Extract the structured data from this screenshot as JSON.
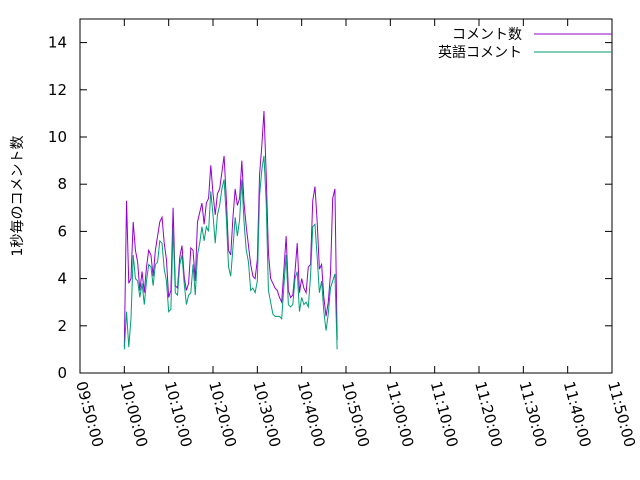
{
  "chart_data": {
    "type": "line",
    "ylabel": "1秒毎のコメント数",
    "xlabel": "",
    "ylim": [
      0,
      15
    ],
    "x_ticks": [
      "09:50:00",
      "10:00:00",
      "10:10:00",
      "10:20:00",
      "10:30:00",
      "10:40:00",
      "10:50:00",
      "11:00:00",
      "11:10:00",
      "11:20:00",
      "11:30:00",
      "11:40:00",
      "11:50:00"
    ],
    "y_ticks": [
      0,
      2,
      4,
      6,
      8,
      10,
      12,
      14
    ],
    "legend_position": "top-right",
    "series": [
      {
        "name": "コメント数",
        "color": "#9400d3",
        "points": [
          [
            "10:00:00",
            1.1
          ],
          [
            "10:00:30",
            7.3
          ],
          [
            "10:01:00",
            3.8
          ],
          [
            "10:01:30",
            4.0
          ],
          [
            "10:02:00",
            6.4
          ],
          [
            "10:02:30",
            5.2
          ],
          [
            "10:03:00",
            4.7
          ],
          [
            "10:03:30",
            3.5
          ],
          [
            "10:04:00",
            4.3
          ],
          [
            "10:04:30",
            3.4
          ],
          [
            "10:05:00",
            4.5
          ],
          [
            "10:05:30",
            5.2
          ],
          [
            "10:06:00",
            5.0
          ],
          [
            "10:06:30",
            4.1
          ],
          [
            "10:07:00",
            5.2
          ],
          [
            "10:07:30",
            5.8
          ],
          [
            "10:08:00",
            6.4
          ],
          [
            "10:08:30",
            6.6
          ],
          [
            "10:09:00",
            5.5
          ],
          [
            "10:09:30",
            4.8
          ],
          [
            "10:10:00",
            3.2
          ],
          [
            "10:10:30",
            3.5
          ],
          [
            "10:11:00",
            7.0
          ],
          [
            "10:11:30",
            3.7
          ],
          [
            "10:12:00",
            3.6
          ],
          [
            "10:12:30",
            4.9
          ],
          [
            "10:13:00",
            5.4
          ],
          [
            "10:13:30",
            4.1
          ],
          [
            "10:14:00",
            3.5
          ],
          [
            "10:14:30",
            3.8
          ],
          [
            "10:15:00",
            5.3
          ],
          [
            "10:15:30",
            5.2
          ],
          [
            "10:16:00",
            3.9
          ],
          [
            "10:16:30",
            6.4
          ],
          [
            "10:17:00",
            6.8
          ],
          [
            "10:17:30",
            7.2
          ],
          [
            "10:18:00",
            6.3
          ],
          [
            "10:18:30",
            7.2
          ],
          [
            "10:19:00",
            7.4
          ],
          [
            "10:19:30",
            8.8
          ],
          [
            "10:20:00",
            7.6
          ],
          [
            "10:20:30",
            6.7
          ],
          [
            "10:21:00",
            7.6
          ],
          [
            "10:21:30",
            7.8
          ],
          [
            "10:22:00",
            8.5
          ],
          [
            "10:22:30",
            9.2
          ],
          [
            "10:23:00",
            7.4
          ],
          [
            "10:23:30",
            5.2
          ],
          [
            "10:24:00",
            5.0
          ],
          [
            "10:24:30",
            6.6
          ],
          [
            "10:25:00",
            7.8
          ],
          [
            "10:25:30",
            7.1
          ],
          [
            "10:26:00",
            7.4
          ],
          [
            "10:26:30",
            9.0
          ],
          [
            "10:27:00",
            7.2
          ],
          [
            "10:27:30",
            6.2
          ],
          [
            "10:28:00",
            5.4
          ],
          [
            "10:28:30",
            4.6
          ],
          [
            "10:29:00",
            4.1
          ],
          [
            "10:29:30",
            4.0
          ],
          [
            "10:30:00",
            4.8
          ],
          [
            "10:30:30",
            8.4
          ],
          [
            "10:31:00",
            9.6
          ],
          [
            "10:31:30",
            11.1
          ],
          [
            "10:32:00",
            8.4
          ],
          [
            "10:32:30",
            5.1
          ],
          [
            "10:33:00",
            4.0
          ],
          [
            "10:33:30",
            3.8
          ],
          [
            "10:34:00",
            3.6
          ],
          [
            "10:34:30",
            3.5
          ],
          [
            "10:35:00",
            3.2
          ],
          [
            "10:35:30",
            3.0
          ],
          [
            "10:36:00",
            4.4
          ],
          [
            "10:36:30",
            5.8
          ],
          [
            "10:37:00",
            3.5
          ],
          [
            "10:37:30",
            3.2
          ],
          [
            "10:38:00",
            3.3
          ],
          [
            "10:38:30",
            4.3
          ],
          [
            "10:39:00",
            5.5
          ],
          [
            "10:39:30",
            3.4
          ],
          [
            "10:40:00",
            4.0
          ],
          [
            "10:40:30",
            3.6
          ],
          [
            "10:41:00",
            3.4
          ],
          [
            "10:41:30",
            4.5
          ],
          [
            "10:42:00",
            4.6
          ],
          [
            "10:42:30",
            7.3
          ],
          [
            "10:43:00",
            7.9
          ],
          [
            "10:43:30",
            6.4
          ],
          [
            "10:44:00",
            4.4
          ],
          [
            "10:44:30",
            4.6
          ],
          [
            "10:45:00",
            3.2
          ],
          [
            "10:45:30",
            2.4
          ],
          [
            "10:46:00",
            3.0
          ],
          [
            "10:46:30",
            4.2
          ],
          [
            "10:47:00",
            7.4
          ],
          [
            "10:47:30",
            7.8
          ],
          [
            "10:48:00",
            1.4
          ]
        ]
      },
      {
        "name": "英語コメント",
        "color": "#009e73",
        "points": [
          [
            "10:00:00",
            1.0
          ],
          [
            "10:00:30",
            2.6
          ],
          [
            "10:01:00",
            1.1
          ],
          [
            "10:01:30",
            2.3
          ],
          [
            "10:02:00",
            5.0
          ],
          [
            "10:02:30",
            4.0
          ],
          [
            "10:03:00",
            3.9
          ],
          [
            "10:03:30",
            3.2
          ],
          [
            "10:04:00",
            3.8
          ],
          [
            "10:04:30",
            2.9
          ],
          [
            "10:05:00",
            3.9
          ],
          [
            "10:05:30",
            4.6
          ],
          [
            "10:06:00",
            4.5
          ],
          [
            "10:06:30",
            3.7
          ],
          [
            "10:07:00",
            4.6
          ],
          [
            "10:07:30",
            4.7
          ],
          [
            "10:08:00",
            5.6
          ],
          [
            "10:08:30",
            5.5
          ],
          [
            "10:09:00",
            4.4
          ],
          [
            "10:09:30",
            3.9
          ],
          [
            "10:10:00",
            2.6
          ],
          [
            "10:10:30",
            2.7
          ],
          [
            "10:11:00",
            6.1
          ],
          [
            "10:11:30",
            3.4
          ],
          [
            "10:12:00",
            3.3
          ],
          [
            "10:12:30",
            4.6
          ],
          [
            "10:13:00",
            5.0
          ],
          [
            "10:13:30",
            3.8
          ],
          [
            "10:14:00",
            2.9
          ],
          [
            "10:14:30",
            3.3
          ],
          [
            "10:15:00",
            3.4
          ],
          [
            "10:15:30",
            4.6
          ],
          [
            "10:16:00",
            3.3
          ],
          [
            "10:16:30",
            5.0
          ],
          [
            "10:17:00",
            5.5
          ],
          [
            "10:17:30",
            6.2
          ],
          [
            "10:18:00",
            5.6
          ],
          [
            "10:18:30",
            6.2
          ],
          [
            "10:19:00",
            6.0
          ],
          [
            "10:19:30",
            7.7
          ],
          [
            "10:20:00",
            6.7
          ],
          [
            "10:20:30",
            5.5
          ],
          [
            "10:21:00",
            6.7
          ],
          [
            "10:21:30",
            7.1
          ],
          [
            "10:22:00",
            7.8
          ],
          [
            "10:22:30",
            8.2
          ],
          [
            "10:23:00",
            6.6
          ],
          [
            "10:23:30",
            4.5
          ],
          [
            "10:24:00",
            4.1
          ],
          [
            "10:24:30",
            5.3
          ],
          [
            "10:25:00",
            6.6
          ],
          [
            "10:25:30",
            5.8
          ],
          [
            "10:26:00",
            6.5
          ],
          [
            "10:26:30",
            8.2
          ],
          [
            "10:27:00",
            6.4
          ],
          [
            "10:27:30",
            5.2
          ],
          [
            "10:28:00",
            4.7
          ],
          [
            "10:28:30",
            3.5
          ],
          [
            "10:29:00",
            3.6
          ],
          [
            "10:29:30",
            3.4
          ],
          [
            "10:30:00",
            3.9
          ],
          [
            "10:30:30",
            7.5
          ],
          [
            "10:31:00",
            8.6
          ],
          [
            "10:31:30",
            9.2
          ],
          [
            "10:32:00",
            7.2
          ],
          [
            "10:32:30",
            3.5
          ],
          [
            "10:33:00",
            3.0
          ],
          [
            "10:33:30",
            2.5
          ],
          [
            "10:34:00",
            2.4
          ],
          [
            "10:34:30",
            2.4
          ],
          [
            "10:35:00",
            2.4
          ],
          [
            "10:35:30",
            2.3
          ],
          [
            "10:36:00",
            3.7
          ],
          [
            "10:36:30",
            5.0
          ],
          [
            "10:37:00",
            2.9
          ],
          [
            "10:37:30",
            2.8
          ],
          [
            "10:38:00",
            2.9
          ],
          [
            "10:38:30",
            4.0
          ],
          [
            "10:39:00",
            4.3
          ],
          [
            "10:39:30",
            2.6
          ],
          [
            "10:40:00",
            3.2
          ],
          [
            "10:40:30",
            2.9
          ],
          [
            "10:41:00",
            3.0
          ],
          [
            "10:41:30",
            2.8
          ],
          [
            "10:42:00",
            4.1
          ],
          [
            "10:42:30",
            6.2
          ],
          [
            "10:43:00",
            6.3
          ],
          [
            "10:43:30",
            4.9
          ],
          [
            "10:44:00",
            3.4
          ],
          [
            "10:44:30",
            3.9
          ],
          [
            "10:45:00",
            2.6
          ],
          [
            "10:45:30",
            1.8
          ],
          [
            "10:46:00",
            2.5
          ],
          [
            "10:46:30",
            3.6
          ],
          [
            "10:47:00",
            3.9
          ],
          [
            "10:47:30",
            4.2
          ],
          [
            "10:48:00",
            1.0
          ]
        ]
      }
    ]
  }
}
